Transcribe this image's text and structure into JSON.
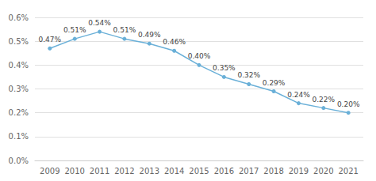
{
  "chart_data": {
    "type": "line",
    "x": [
      2009,
      2010,
      2011,
      2012,
      2013,
      2014,
      2015,
      2016,
      2017,
      2018,
      2019,
      2020,
      2021
    ],
    "values": [
      0.0047,
      0.0051,
      0.0054,
      0.0051,
      0.0049,
      0.0046,
      0.004,
      0.0035,
      0.0032,
      0.0029,
      0.0024,
      0.0022,
      0.002
    ],
    "value_labels": [
      "0.47%",
      "0.51%",
      "0.54%",
      "0.51%",
      "0.49%",
      "0.46%",
      "0.40%",
      "0.35%",
      "0.32%",
      "0.29%",
      "0.24%",
      "0.22%",
      "0.20%"
    ],
    "data_labels": true,
    "color": "#6AB0D8",
    "marker": "circle",
    "xlim": [
      2008.4,
      2021.6
    ],
    "xticks": [
      2009,
      2010,
      2011,
      2012,
      2013,
      2014,
      2015,
      2016,
      2017,
      2018,
      2019,
      2020,
      2021
    ],
    "ylim": [
      0.0,
      0.006
    ],
    "yticks": [
      {
        "value": 0.0,
        "label": "0.0%"
      },
      {
        "value": 0.001,
        "label": "0.1%"
      },
      {
        "value": 0.002,
        "label": "0.2%"
      },
      {
        "value": 0.003,
        "label": "0.3%"
      },
      {
        "value": 0.004,
        "label": "0.4%"
      },
      {
        "value": 0.005,
        "label": "0.5%"
      },
      {
        "value": 0.006,
        "label": "0.6%"
      }
    ],
    "grid": true
  }
}
